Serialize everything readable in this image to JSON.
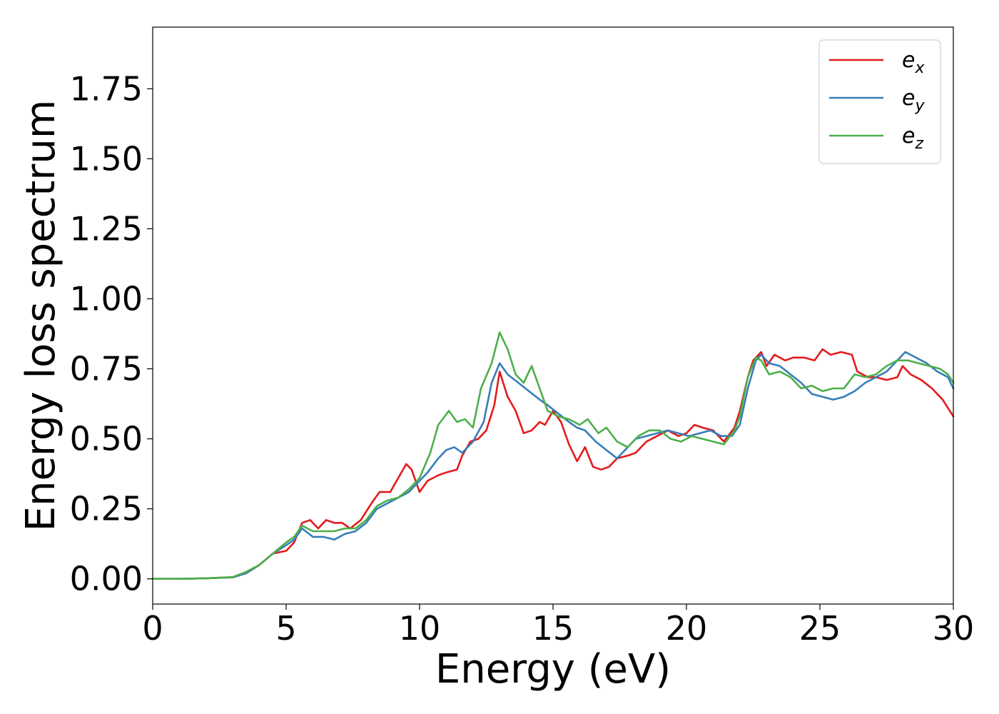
{
  "chart_data": {
    "type": "line",
    "xlabel": "Energy (eV)",
    "ylabel": "Energy loss spectrum",
    "xlim": [
      0,
      30
    ],
    "ylim": [
      -0.09,
      1.97
    ],
    "xticks": [
      "0",
      "5",
      "10",
      "15",
      "20",
      "25",
      "30"
    ],
    "yticks": [
      "0.00",
      "0.25",
      "0.50",
      "0.75",
      "1.00",
      "1.25",
      "1.50",
      "1.75"
    ],
    "grid": false,
    "legend_position": "top-right",
    "series": [
      {
        "name": "e_x",
        "legend_base": "e",
        "legend_sub": "x",
        "color": "#e41a1c",
        "points": [
          [
            0,
            0.0
          ],
          [
            1,
            0.0
          ],
          [
            2,
            0.002
          ],
          [
            3,
            0.006
          ],
          [
            3.5,
            0.02
          ],
          [
            4,
            0.05
          ],
          [
            4.5,
            0.09
          ],
          [
            5,
            0.1
          ],
          [
            5.3,
            0.13
          ],
          [
            5.6,
            0.2
          ],
          [
            5.9,
            0.21
          ],
          [
            6.2,
            0.18
          ],
          [
            6.5,
            0.21
          ],
          [
            6.8,
            0.2
          ],
          [
            7.1,
            0.2
          ],
          [
            7.4,
            0.18
          ],
          [
            7.8,
            0.21
          ],
          [
            8.2,
            0.27
          ],
          [
            8.5,
            0.31
          ],
          [
            8.9,
            0.31
          ],
          [
            9.2,
            0.36
          ],
          [
            9.5,
            0.41
          ],
          [
            9.7,
            0.39
          ],
          [
            10.0,
            0.31
          ],
          [
            10.3,
            0.35
          ],
          [
            10.7,
            0.37
          ],
          [
            11.0,
            0.38
          ],
          [
            11.4,
            0.39
          ],
          [
            11.6,
            0.44
          ],
          [
            11.9,
            0.49
          ],
          [
            12.2,
            0.5
          ],
          [
            12.5,
            0.53
          ],
          [
            12.8,
            0.62
          ],
          [
            13.0,
            0.74
          ],
          [
            13.3,
            0.65
          ],
          [
            13.6,
            0.6
          ],
          [
            13.9,
            0.52
          ],
          [
            14.2,
            0.53
          ],
          [
            14.5,
            0.56
          ],
          [
            14.7,
            0.55
          ],
          [
            15.0,
            0.6
          ],
          [
            15.3,
            0.56
          ],
          [
            15.6,
            0.48
          ],
          [
            15.9,
            0.42
          ],
          [
            16.2,
            0.47
          ],
          [
            16.5,
            0.4
          ],
          [
            16.8,
            0.39
          ],
          [
            17.1,
            0.4
          ],
          [
            17.4,
            0.43
          ],
          [
            17.8,
            0.44
          ],
          [
            18.1,
            0.45
          ],
          [
            18.5,
            0.49
          ],
          [
            18.9,
            0.51
          ],
          [
            19.3,
            0.53
          ],
          [
            19.7,
            0.51
          ],
          [
            20.0,
            0.52
          ],
          [
            20.3,
            0.55
          ],
          [
            20.6,
            0.54
          ],
          [
            21.0,
            0.53
          ],
          [
            21.4,
            0.49
          ],
          [
            21.8,
            0.54
          ],
          [
            22.0,
            0.6
          ],
          [
            22.3,
            0.72
          ],
          [
            22.5,
            0.78
          ],
          [
            22.8,
            0.81
          ],
          [
            23.0,
            0.76
          ],
          [
            23.3,
            0.8
          ],
          [
            23.7,
            0.78
          ],
          [
            24.0,
            0.79
          ],
          [
            24.4,
            0.79
          ],
          [
            24.8,
            0.78
          ],
          [
            25.1,
            0.82
          ],
          [
            25.4,
            0.8
          ],
          [
            25.8,
            0.81
          ],
          [
            26.2,
            0.8
          ],
          [
            26.4,
            0.74
          ],
          [
            26.8,
            0.72
          ],
          [
            27.1,
            0.72
          ],
          [
            27.5,
            0.71
          ],
          [
            27.9,
            0.72
          ],
          [
            28.1,
            0.76
          ],
          [
            28.4,
            0.73
          ],
          [
            28.8,
            0.71
          ],
          [
            29.2,
            0.68
          ],
          [
            29.6,
            0.64
          ],
          [
            30.0,
            0.58
          ]
        ]
      },
      {
        "name": "e_y",
        "legend_base": "e",
        "legend_sub": "y",
        "color": "#377eb8",
        "points": [
          [
            0,
            0.0
          ],
          [
            1,
            0.0
          ],
          [
            2,
            0.002
          ],
          [
            3,
            0.005
          ],
          [
            3.5,
            0.02
          ],
          [
            4,
            0.05
          ],
          [
            4.5,
            0.09
          ],
          [
            5,
            0.12
          ],
          [
            5.3,
            0.14
          ],
          [
            5.6,
            0.18
          ],
          [
            6.0,
            0.15
          ],
          [
            6.4,
            0.15
          ],
          [
            6.8,
            0.14
          ],
          [
            7.2,
            0.16
          ],
          [
            7.6,
            0.17
          ],
          [
            8.0,
            0.2
          ],
          [
            8.4,
            0.25
          ],
          [
            8.8,
            0.27
          ],
          [
            9.2,
            0.29
          ],
          [
            9.6,
            0.31
          ],
          [
            10.0,
            0.35
          ],
          [
            10.3,
            0.38
          ],
          [
            10.7,
            0.43
          ],
          [
            11.0,
            0.46
          ],
          [
            11.3,
            0.47
          ],
          [
            11.6,
            0.45
          ],
          [
            12.0,
            0.49
          ],
          [
            12.4,
            0.56
          ],
          [
            12.7,
            0.7
          ],
          [
            13.0,
            0.77
          ],
          [
            13.3,
            0.73
          ],
          [
            13.7,
            0.7
          ],
          [
            14.1,
            0.67
          ],
          [
            14.5,
            0.64
          ],
          [
            14.8,
            0.62
          ],
          [
            15.2,
            0.59
          ],
          [
            15.6,
            0.56
          ],
          [
            15.9,
            0.54
          ],
          [
            16.2,
            0.53
          ],
          [
            16.6,
            0.49
          ],
          [
            17.0,
            0.46
          ],
          [
            17.4,
            0.43
          ],
          [
            17.8,
            0.47
          ],
          [
            18.1,
            0.5
          ],
          [
            18.5,
            0.51
          ],
          [
            18.9,
            0.52
          ],
          [
            19.3,
            0.53
          ],
          [
            19.7,
            0.52
          ],
          [
            20.1,
            0.51
          ],
          [
            20.5,
            0.52
          ],
          [
            20.9,
            0.53
          ],
          [
            21.3,
            0.51
          ],
          [
            21.7,
            0.51
          ],
          [
            22.0,
            0.55
          ],
          [
            22.3,
            0.68
          ],
          [
            22.6,
            0.78
          ],
          [
            22.8,
            0.8
          ],
          [
            23.1,
            0.77
          ],
          [
            23.5,
            0.76
          ],
          [
            23.9,
            0.73
          ],
          [
            24.3,
            0.7
          ],
          [
            24.7,
            0.66
          ],
          [
            25.1,
            0.65
          ],
          [
            25.5,
            0.64
          ],
          [
            25.9,
            0.65
          ],
          [
            26.3,
            0.67
          ],
          [
            26.7,
            0.7
          ],
          [
            27.1,
            0.72
          ],
          [
            27.5,
            0.74
          ],
          [
            27.9,
            0.78
          ],
          [
            28.2,
            0.81
          ],
          [
            28.6,
            0.79
          ],
          [
            29.0,
            0.77
          ],
          [
            29.4,
            0.74
          ],
          [
            29.8,
            0.72
          ],
          [
            30.0,
            0.68
          ]
        ]
      },
      {
        "name": "e_z",
        "legend_base": "e",
        "legend_sub": "z",
        "color": "#4daf4a",
        "points": [
          [
            0,
            0.0
          ],
          [
            1,
            0.0
          ],
          [
            2,
            0.002
          ],
          [
            3,
            0.006
          ],
          [
            3.5,
            0.025
          ],
          [
            4,
            0.05
          ],
          [
            4.5,
            0.09
          ],
          [
            5,
            0.13
          ],
          [
            5.3,
            0.15
          ],
          [
            5.6,
            0.19
          ],
          [
            6.0,
            0.17
          ],
          [
            6.4,
            0.17
          ],
          [
            6.8,
            0.17
          ],
          [
            7.2,
            0.18
          ],
          [
            7.6,
            0.18
          ],
          [
            8.0,
            0.21
          ],
          [
            8.4,
            0.26
          ],
          [
            8.8,
            0.28
          ],
          [
            9.2,
            0.29
          ],
          [
            9.6,
            0.32
          ],
          [
            10.0,
            0.36
          ],
          [
            10.4,
            0.45
          ],
          [
            10.7,
            0.55
          ],
          [
            11.1,
            0.6
          ],
          [
            11.4,
            0.56
          ],
          [
            11.7,
            0.57
          ],
          [
            12.0,
            0.54
          ],
          [
            12.3,
            0.68
          ],
          [
            12.7,
            0.77
          ],
          [
            13.0,
            0.88
          ],
          [
            13.3,
            0.82
          ],
          [
            13.6,
            0.73
          ],
          [
            13.9,
            0.7
          ],
          [
            14.2,
            0.76
          ],
          [
            14.5,
            0.68
          ],
          [
            14.8,
            0.6
          ],
          [
            15.2,
            0.58
          ],
          [
            15.6,
            0.57
          ],
          [
            16.0,
            0.55
          ],
          [
            16.3,
            0.57
          ],
          [
            16.7,
            0.52
          ],
          [
            17.0,
            0.54
          ],
          [
            17.4,
            0.49
          ],
          [
            17.8,
            0.47
          ],
          [
            18.2,
            0.51
          ],
          [
            18.6,
            0.53
          ],
          [
            19.0,
            0.53
          ],
          [
            19.4,
            0.5
          ],
          [
            19.8,
            0.49
          ],
          [
            20.2,
            0.51
          ],
          [
            20.6,
            0.5
          ],
          [
            21.0,
            0.49
          ],
          [
            21.4,
            0.48
          ],
          [
            21.8,
            0.53
          ],
          [
            22.0,
            0.58
          ],
          [
            22.3,
            0.72
          ],
          [
            22.6,
            0.79
          ],
          [
            22.8,
            0.78
          ],
          [
            23.1,
            0.73
          ],
          [
            23.5,
            0.74
          ],
          [
            23.9,
            0.72
          ],
          [
            24.3,
            0.68
          ],
          [
            24.7,
            0.69
          ],
          [
            25.1,
            0.67
          ],
          [
            25.5,
            0.68
          ],
          [
            25.9,
            0.68
          ],
          [
            26.3,
            0.73
          ],
          [
            26.7,
            0.72
          ],
          [
            27.1,
            0.73
          ],
          [
            27.5,
            0.76
          ],
          [
            27.9,
            0.78
          ],
          [
            28.3,
            0.78
          ],
          [
            28.7,
            0.77
          ],
          [
            29.1,
            0.76
          ],
          [
            29.5,
            0.75
          ],
          [
            29.8,
            0.73
          ],
          [
            30.0,
            0.7
          ]
        ]
      }
    ]
  }
}
